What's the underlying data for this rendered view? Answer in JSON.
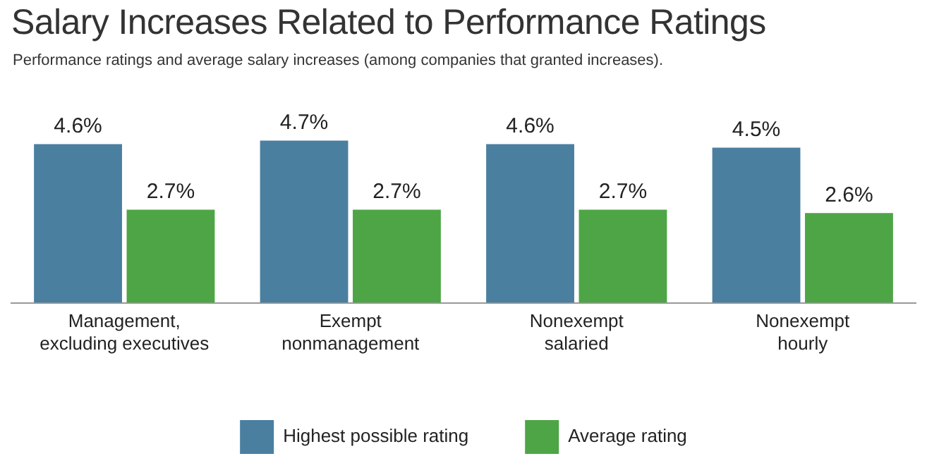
{
  "chart_data": {
    "type": "bar",
    "title": "Salary Increases Related to Performance Ratings",
    "subtitle": "Performance ratings and average salary increases (among companies that granted increases).",
    "categories": [
      "Management,\nexcluding executives",
      "Exempt\nnonmanagement",
      "Nonexempt\nsalaried",
      "Nonexempt\nhourly"
    ],
    "series": [
      {
        "name": "Highest possible rating",
        "color": "#4a7fa0",
        "values": [
          4.6,
          4.7,
          4.6,
          4.5
        ],
        "value_labels": [
          "4.6%",
          "4.7%",
          "4.6%",
          "4.5%"
        ]
      },
      {
        "name": "Average rating",
        "color": "#4ea546",
        "values": [
          2.7,
          2.7,
          2.7,
          2.6
        ],
        "value_labels": [
          "2.7%",
          "2.7%",
          "2.7%",
          "2.6%"
        ]
      }
    ],
    "legend": "bottom",
    "grid": false
  }
}
